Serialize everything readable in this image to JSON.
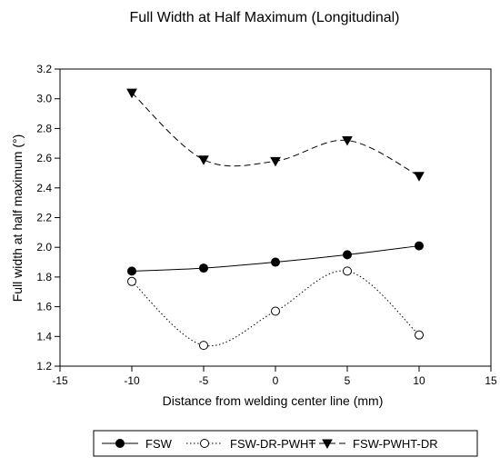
{
  "chart_data": {
    "type": "line",
    "title": "Full Width at Half Maximum (Longitudinal)",
    "xlabel": "Distance from welding center line (mm)",
    "ylabel": "Full width at half maximum (°)",
    "xlim": [
      -15,
      15
    ],
    "ylim": [
      1.2,
      3.2
    ],
    "xticks": [
      -15,
      -10,
      -5,
      0,
      5,
      10,
      15
    ],
    "yticks": [
      1.2,
      1.4,
      1.6,
      1.8,
      2.0,
      2.2,
      2.4,
      2.6,
      2.8,
      3.0,
      3.2
    ],
    "grid": false,
    "legend_position": "bottom",
    "x": [
      -10,
      -5,
      0,
      5,
      10
    ],
    "series": [
      {
        "name": "FSW",
        "values": [
          1.84,
          1.86,
          1.9,
          1.95,
          2.01
        ],
        "line_style": "solid",
        "marker": "filled-circle"
      },
      {
        "name": "FSW-DR-PWHT",
        "values": [
          1.77,
          1.34,
          1.57,
          1.84,
          1.41
        ],
        "line_style": "dotted",
        "marker": "open-circle"
      },
      {
        "name": "FSW-PWHT-DR",
        "values": [
          3.04,
          2.59,
          2.58,
          2.72,
          2.48
        ],
        "line_style": "dashed",
        "marker": "filled-triangle-down"
      }
    ]
  }
}
